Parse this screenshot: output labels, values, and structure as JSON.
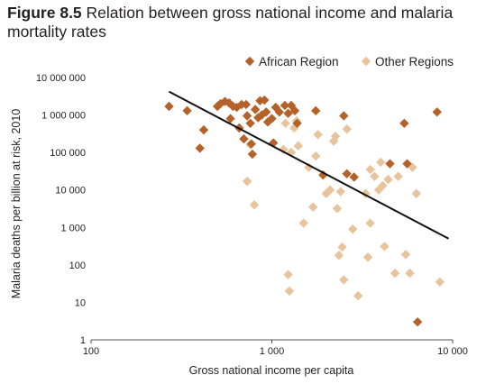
{
  "figure_label": "Figure 8.5",
  "figure_title": "Relation between gross national income and malaria mortality rates",
  "colors": {
    "african": "#b5622a",
    "other": "#e8c49c",
    "trend": "#111111"
  },
  "chart_data": {
    "type": "scatter",
    "xscale": "log",
    "yscale": "log",
    "xlabel": "Gross national income per capita",
    "ylabel": "Malaria deaths per billion at risk, 2010",
    "xlim": [
      100,
      10000
    ],
    "ylim": [
      1,
      10000000
    ],
    "xticks": [
      {
        "value": 100,
        "label": "100"
      },
      {
        "value": 1000,
        "label": "1 000"
      },
      {
        "value": 10000,
        "label": "10 000"
      }
    ],
    "yticks": [
      {
        "value": 1,
        "label": "1"
      },
      {
        "value": 10,
        "label": "10"
      },
      {
        "value": 100,
        "label": "100"
      },
      {
        "value": 1000,
        "label": "1 000"
      },
      {
        "value": 10000,
        "label": "10 000"
      },
      {
        "value": 100000,
        "label": "100 000"
      },
      {
        "value": 1000000,
        "label": "1 000 000"
      },
      {
        "value": 10000000,
        "label": "10 000 000"
      }
    ],
    "legend_position": "top-right",
    "series": [
      {
        "name": "African Region",
        "color": "#b5622a",
        "points": [
          [
            270,
            1700000
          ],
          [
            340,
            1300000
          ],
          [
            400,
            130000
          ],
          [
            420,
            400000
          ],
          [
            500,
            1700000
          ],
          [
            520,
            2000000
          ],
          [
            550,
            2300000
          ],
          [
            580,
            2100000
          ],
          [
            590,
            800000
          ],
          [
            610,
            1700000
          ],
          [
            640,
            1600000
          ],
          [
            660,
            450000
          ],
          [
            680,
            1900000
          ],
          [
            700,
            230000
          ],
          [
            720,
            1900000
          ],
          [
            730,
            950000
          ],
          [
            760,
            600000
          ],
          [
            770,
            170000
          ],
          [
            780,
            90000
          ],
          [
            810,
            1400000
          ],
          [
            840,
            850000
          ],
          [
            860,
            2400000
          ],
          [
            880,
            1000000
          ],
          [
            910,
            2500000
          ],
          [
            930,
            1200000
          ],
          [
            950,
            650000
          ],
          [
            1000,
            800000
          ],
          [
            1020,
            180000
          ],
          [
            1050,
            1600000
          ],
          [
            1100,
            1200000
          ],
          [
            1180,
            1800000
          ],
          [
            1230,
            1100000
          ],
          [
            1280,
            1800000
          ],
          [
            1340,
            1300000
          ],
          [
            1380,
            600000
          ],
          [
            1750,
            1300000
          ],
          [
            1920,
            25000
          ],
          [
            2500,
            950000
          ],
          [
            2600,
            27000
          ],
          [
            2850,
            22000
          ],
          [
            4500,
            50000
          ],
          [
            5400,
            600000
          ],
          [
            5600,
            50000
          ],
          [
            6400,
            3
          ],
          [
            8200,
            1200000
          ]
        ]
      },
      {
        "name": "Other Regions",
        "color": "#e8c49c",
        "points": [
          [
            730,
            17000
          ],
          [
            760,
            160000
          ],
          [
            800,
            4000
          ],
          [
            1160,
            120000
          ],
          [
            1190,
            600000
          ],
          [
            1230,
            55
          ],
          [
            1250,
            20
          ],
          [
            1280,
            100000
          ],
          [
            1330,
            450000
          ],
          [
            1370,
            700000
          ],
          [
            1400,
            150000
          ],
          [
            1500,
            1300
          ],
          [
            1600,
            40000
          ],
          [
            1690,
            3500
          ],
          [
            1750,
            80000
          ],
          [
            1800,
            300000
          ],
          [
            2000,
            8000
          ],
          [
            2100,
            10000
          ],
          [
            2200,
            200000
          ],
          [
            2250,
            270000
          ],
          [
            2300,
            3200
          ],
          [
            2350,
            180
          ],
          [
            2400,
            9000
          ],
          [
            2450,
            300
          ],
          [
            2500,
            40
          ],
          [
            2600,
            420000
          ],
          [
            2800,
            900
          ],
          [
            3000,
            15
          ],
          [
            3300,
            8000
          ],
          [
            3400,
            160
          ],
          [
            3500,
            1300
          ],
          [
            3500,
            35000
          ],
          [
            3700,
            23000
          ],
          [
            3900,
            10000
          ],
          [
            4000,
            55000
          ],
          [
            4100,
            13000
          ],
          [
            4200,
            310
          ],
          [
            4400,
            19000
          ],
          [
            4800,
            60
          ],
          [
            5000,
            23000
          ],
          [
            5500,
            190
          ],
          [
            5800,
            60
          ],
          [
            6000,
            40000
          ],
          [
            6300,
            8000
          ],
          [
            8500,
            35
          ]
        ]
      }
    ],
    "trendline": {
      "from": [
        270,
        4200000
      ],
      "to": [
        9500,
        500
      ]
    }
  }
}
